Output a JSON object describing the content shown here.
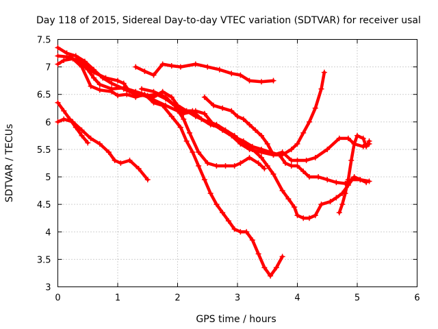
{
  "chart_data": {
    "type": "scatter",
    "title": "Day 118 of 2015, Sidereal Day-to-day VTEC variation (SDTVAR) for receiver usal",
    "xlabel": "GPS time / hours",
    "ylabel": "SDTVAR / TECUs",
    "xlim": [
      0,
      6
    ],
    "ylim": [
      3,
      7.5
    ],
    "xticks": [
      "0",
      "1",
      "2",
      "3",
      "4",
      "5",
      "6"
    ],
    "yticks": [
      "3",
      "3.5",
      "4",
      "4.5",
      "5",
      "5.5",
      "6",
      "6.5",
      "7",
      "7.5"
    ],
    "grid": true,
    "color": "#ff0000",
    "marker": "cross",
    "series": [
      {
        "points": [
          [
            1.3,
            7.0
          ],
          [
            1.45,
            6.92
          ],
          [
            1.6,
            6.85
          ],
          [
            1.75,
            7.05
          ],
          [
            1.9,
            7.02
          ],
          [
            2.05,
            7.0
          ],
          [
            2.3,
            7.05
          ],
          [
            2.5,
            7.0
          ],
          [
            2.7,
            6.95
          ],
          [
            2.9,
            6.88
          ],
          [
            3.05,
            6.85
          ],
          [
            3.2,
            6.75
          ],
          [
            3.4,
            6.73
          ],
          [
            3.6,
            6.75
          ]
        ]
      },
      {
        "points": [
          [
            0.0,
            7.35
          ],
          [
            0.15,
            7.25
          ],
          [
            0.3,
            7.2
          ],
          [
            0.45,
            7.05
          ],
          [
            0.6,
            6.9
          ],
          [
            0.8,
            6.8
          ],
          [
            1.0,
            6.75
          ],
          [
            1.1,
            6.7
          ],
          [
            1.2,
            6.55
          ],
          [
            1.4,
            6.5
          ],
          [
            1.6,
            6.4
          ],
          [
            1.8,
            6.3
          ],
          [
            2.0,
            6.2
          ],
          [
            2.1,
            6.15
          ],
          [
            2.3,
            6.2
          ],
          [
            2.45,
            6.15
          ],
          [
            2.6,
            5.95
          ],
          [
            2.75,
            5.85
          ],
          [
            2.9,
            5.75
          ],
          [
            3.05,
            5.6
          ],
          [
            3.2,
            5.5
          ],
          [
            3.4,
            5.45
          ],
          [
            3.6,
            5.4
          ],
          [
            3.75,
            5.45
          ],
          [
            3.9,
            5.3
          ],
          [
            4.0,
            5.3
          ],
          [
            4.15,
            5.3
          ],
          [
            4.3,
            5.35
          ],
          [
            4.5,
            5.5
          ],
          [
            4.7,
            5.7
          ],
          [
            4.85,
            5.7
          ],
          [
            4.95,
            5.6
          ],
          [
            5.1,
            5.55
          ],
          [
            5.2,
            5.6
          ]
        ]
      },
      {
        "points": [
          [
            0.0,
            7.2
          ],
          [
            0.2,
            7.18
          ],
          [
            0.35,
            7.1
          ],
          [
            0.5,
            6.95
          ],
          [
            0.6,
            6.8
          ],
          [
            0.7,
            6.68
          ],
          [
            0.9,
            6.6
          ],
          [
            1.1,
            6.62
          ],
          [
            1.3,
            6.55
          ],
          [
            1.5,
            6.48
          ],
          [
            1.65,
            6.5
          ],
          [
            1.8,
            6.42
          ],
          [
            1.95,
            6.3
          ],
          [
            2.1,
            6.05
          ],
          [
            2.2,
            5.8
          ],
          [
            2.35,
            5.45
          ],
          [
            2.5,
            5.25
          ],
          [
            2.65,
            5.2
          ],
          [
            2.8,
            5.2
          ],
          [
            2.95,
            5.2
          ],
          [
            3.05,
            5.25
          ],
          [
            3.2,
            5.35
          ],
          [
            3.35,
            5.25
          ],
          [
            3.45,
            5.15
          ]
        ]
      },
      {
        "points": [
          [
            0.0,
            7.05
          ],
          [
            0.1,
            7.12
          ],
          [
            0.25,
            7.15
          ],
          [
            0.4,
            7.0
          ],
          [
            0.55,
            6.65
          ],
          [
            0.7,
            6.58
          ],
          [
            0.9,
            6.55
          ],
          [
            1.0,
            6.48
          ],
          [
            1.15,
            6.5
          ],
          [
            1.3,
            6.45
          ],
          [
            1.45,
            6.5
          ],
          [
            1.6,
            6.35
          ],
          [
            1.75,
            6.3
          ],
          [
            1.9,
            6.1
          ],
          [
            2.05,
            5.9
          ],
          [
            2.15,
            5.65
          ],
          [
            2.25,
            5.45
          ],
          [
            2.35,
            5.2
          ],
          [
            2.45,
            4.95
          ],
          [
            2.55,
            4.7
          ],
          [
            2.65,
            4.5
          ],
          [
            2.75,
            4.35
          ],
          [
            2.85,
            4.2
          ],
          [
            2.95,
            4.05
          ],
          [
            3.05,
            4.0
          ],
          [
            3.15,
            4.0
          ],
          [
            3.25,
            3.85
          ],
          [
            3.35,
            3.6
          ],
          [
            3.45,
            3.35
          ],
          [
            3.55,
            3.2
          ],
          [
            3.65,
            3.35
          ],
          [
            3.75,
            3.55
          ]
        ]
      },
      {
        "points": [
          [
            0.0,
            6.35
          ],
          [
            0.1,
            6.2
          ],
          [
            0.2,
            6.05
          ],
          [
            0.3,
            5.9
          ],
          [
            0.4,
            5.75
          ],
          [
            0.5,
            5.62
          ]
        ]
      },
      {
        "points": [
          [
            0.0,
            6.0
          ],
          [
            0.1,
            6.05
          ],
          [
            0.25,
            6.0
          ],
          [
            0.4,
            5.85
          ],
          [
            0.55,
            5.7
          ],
          [
            0.7,
            5.6
          ],
          [
            0.85,
            5.45
          ],
          [
            0.95,
            5.3
          ],
          [
            1.05,
            5.25
          ],
          [
            1.2,
            5.3
          ],
          [
            1.35,
            5.15
          ],
          [
            1.5,
            4.95
          ]
        ]
      },
      {
        "points": [
          [
            0.3,
            7.2
          ],
          [
            0.45,
            7.1
          ],
          [
            0.6,
            6.95
          ],
          [
            0.75,
            6.8
          ],
          [
            0.9,
            6.7
          ],
          [
            1.1,
            6.6
          ],
          [
            1.3,
            6.5
          ],
          [
            1.6,
            6.45
          ],
          [
            1.75,
            6.55
          ],
          [
            1.9,
            6.45
          ],
          [
            2.0,
            6.3
          ],
          [
            2.15,
            6.2
          ],
          [
            2.3,
            6.1
          ],
          [
            2.5,
            6.0
          ],
          [
            2.65,
            5.95
          ],
          [
            2.8,
            5.85
          ],
          [
            2.95,
            5.75
          ],
          [
            3.05,
            5.65
          ],
          [
            3.25,
            5.5
          ],
          [
            3.4,
            5.35
          ],
          [
            3.5,
            5.2
          ],
          [
            3.6,
            5.05
          ],
          [
            3.75,
            4.75
          ],
          [
            3.85,
            4.6
          ],
          [
            3.95,
            4.45
          ],
          [
            4.0,
            4.3
          ],
          [
            4.1,
            4.25
          ],
          [
            4.2,
            4.25
          ],
          [
            4.3,
            4.3
          ],
          [
            4.4,
            4.5
          ],
          [
            4.55,
            4.55
          ],
          [
            4.65,
            4.62
          ],
          [
            4.75,
            4.7
          ],
          [
            4.85,
            4.85
          ],
          [
            4.95,
            5.0
          ],
          [
            5.05,
            4.95
          ],
          [
            5.15,
            4.9
          ]
        ]
      },
      {
        "points": [
          [
            2.45,
            6.45
          ],
          [
            2.6,
            6.3
          ],
          [
            2.75,
            6.25
          ],
          [
            2.9,
            6.2
          ],
          [
            3.0,
            6.1
          ],
          [
            3.1,
            6.05
          ],
          [
            3.2,
            5.95
          ],
          [
            3.3,
            5.85
          ],
          [
            3.4,
            5.75
          ],
          [
            3.5,
            5.6
          ],
          [
            3.6,
            5.4
          ],
          [
            3.75,
            5.4
          ],
          [
            3.9,
            5.5
          ],
          [
            4.0,
            5.6
          ],
          [
            4.1,
            5.8
          ],
          [
            4.2,
            6.0
          ],
          [
            4.3,
            6.25
          ],
          [
            4.4,
            6.6
          ],
          [
            4.45,
            6.9
          ]
        ]
      },
      {
        "points": [
          [
            1.4,
            6.6
          ],
          [
            1.6,
            6.55
          ],
          [
            1.8,
            6.45
          ],
          [
            1.95,
            6.3
          ],
          [
            2.1,
            6.2
          ],
          [
            2.25,
            6.2
          ],
          [
            2.4,
            6.05
          ],
          [
            2.55,
            5.95
          ],
          [
            2.7,
            5.9
          ],
          [
            2.85,
            5.8
          ],
          [
            3.0,
            5.7
          ],
          [
            3.1,
            5.65
          ],
          [
            3.25,
            5.55
          ],
          [
            3.4,
            5.5
          ],
          [
            3.55,
            5.45
          ],
          [
            3.7,
            5.4
          ],
          [
            3.8,
            5.25
          ],
          [
            3.9,
            5.2
          ],
          [
            4.0,
            5.2
          ],
          [
            4.1,
            5.1
          ],
          [
            4.2,
            5.0
          ],
          [
            4.35,
            5.0
          ],
          [
            4.5,
            4.95
          ],
          [
            4.65,
            4.9
          ],
          [
            4.8,
            4.88
          ],
          [
            4.9,
            4.95
          ],
          [
            5.05,
            4.95
          ],
          [
            5.2,
            4.92
          ]
        ]
      },
      {
        "points": [
          [
            4.7,
            4.35
          ],
          [
            4.75,
            4.5
          ],
          [
            4.8,
            4.7
          ],
          [
            4.85,
            4.95
          ],
          [
            4.9,
            5.3
          ],
          [
            4.95,
            5.6
          ],
          [
            5.0,
            5.75
          ],
          [
            5.1,
            5.7
          ],
          [
            5.15,
            5.55
          ],
          [
            5.2,
            5.65
          ]
        ]
      }
    ]
  }
}
